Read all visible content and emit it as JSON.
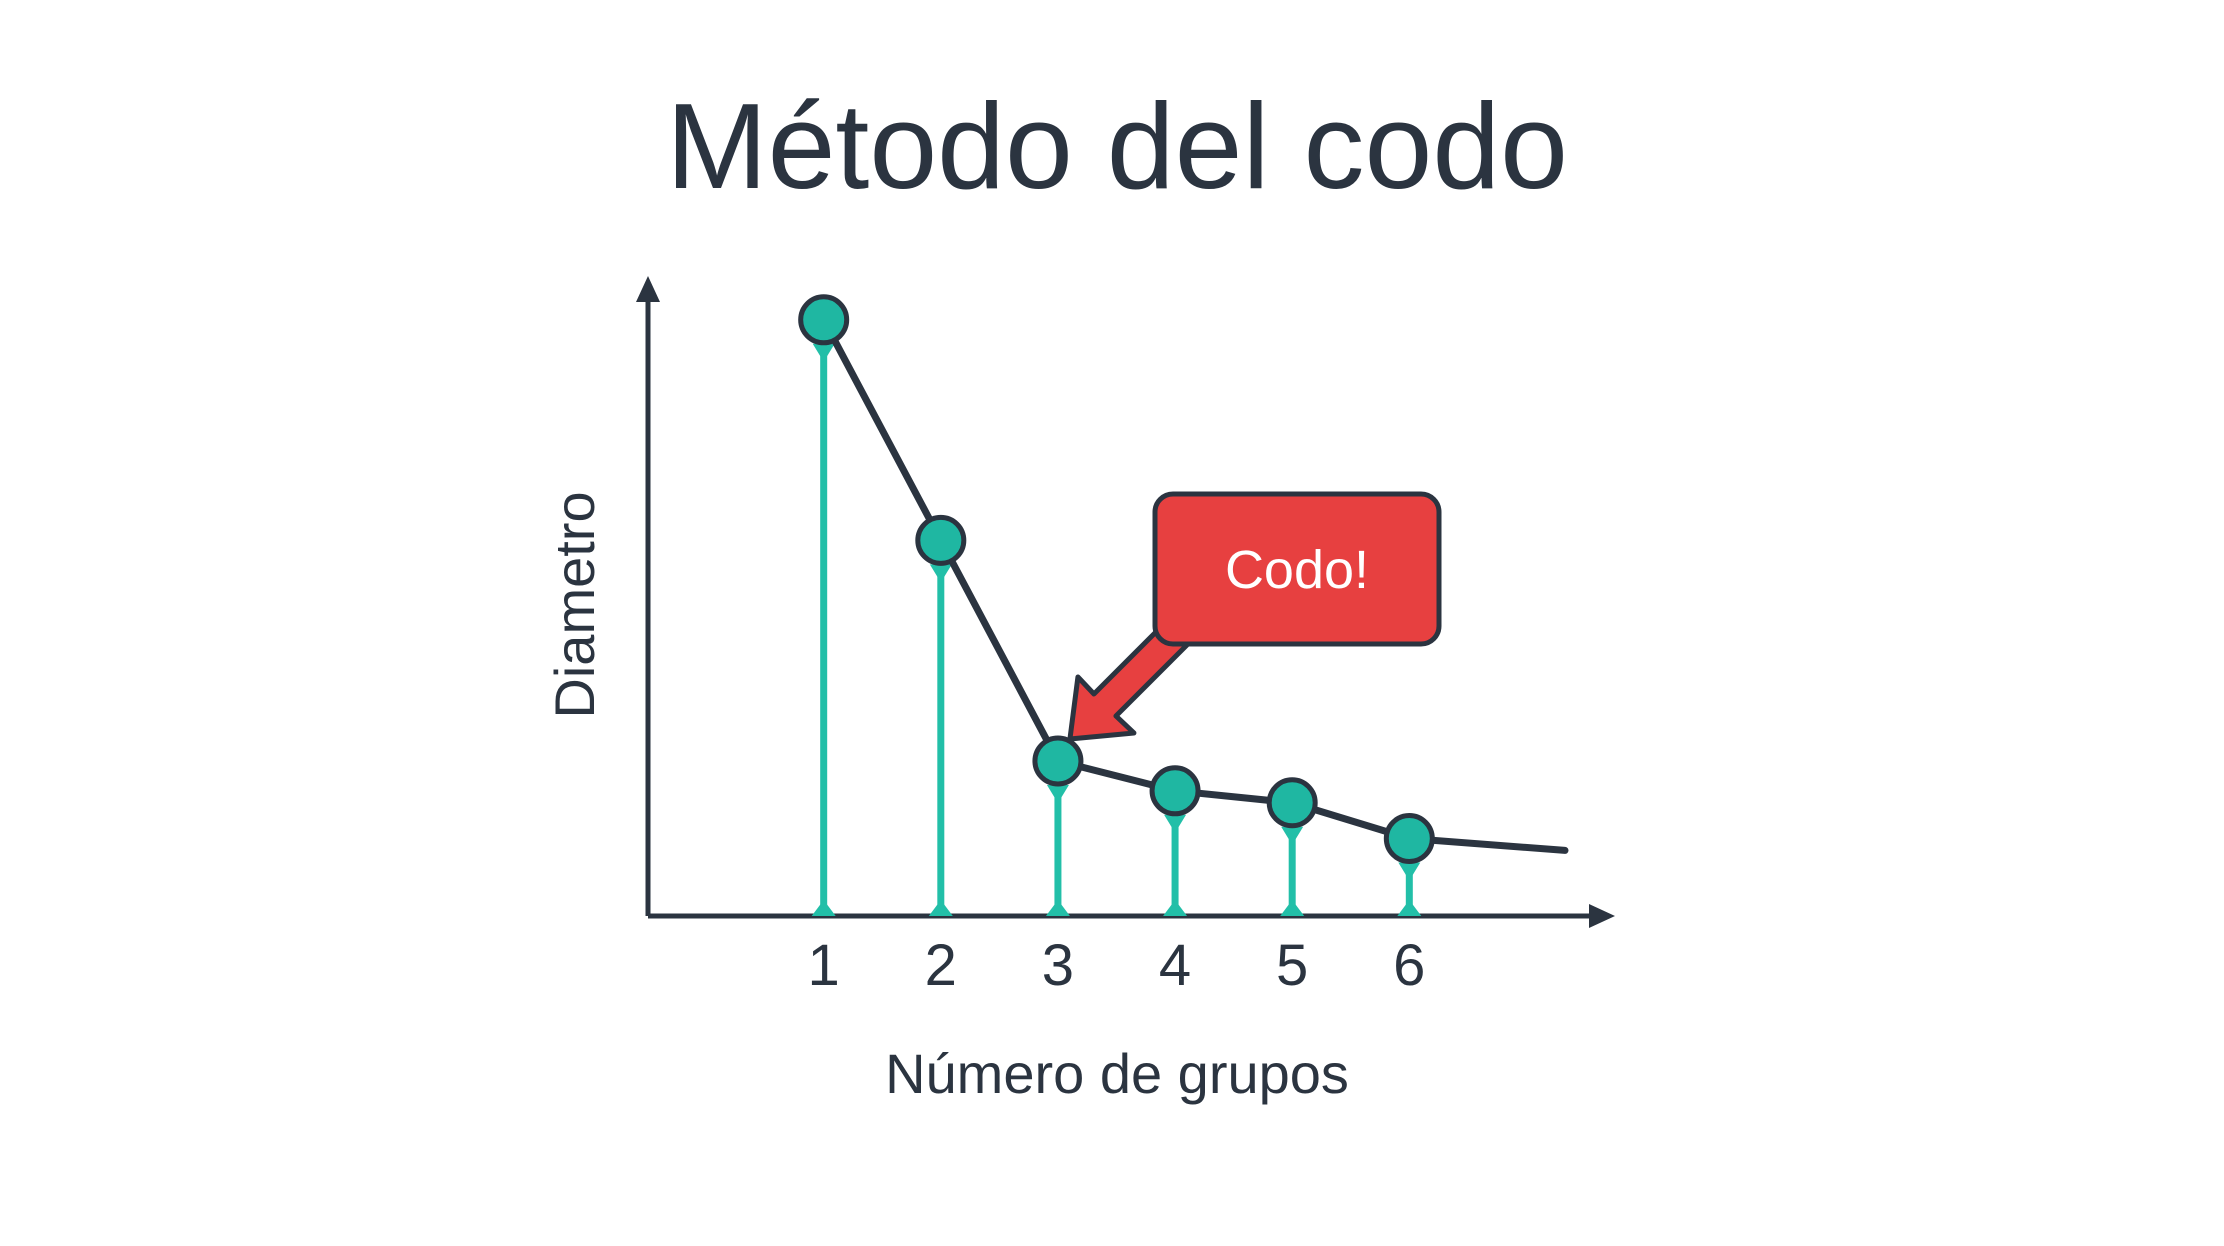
{
  "chart_data": {
    "type": "line",
    "title": "Método del codo",
    "xlabel": "Número de grupos",
    "ylabel": "Diametro",
    "x": [
      1,
      2,
      3,
      4,
      5,
      6
    ],
    "tick_labels": [
      "1",
      "2",
      "3",
      "4",
      "5",
      "6"
    ],
    "series": [
      {
        "values": [
          10.0,
          6.3,
          2.6,
          2.1,
          1.9,
          1.3
        ]
      }
    ],
    "trailing_line_value": 1.1,
    "annotation": {
      "text": "Codo!",
      "points_to_x": 3
    },
    "xlim": [
      -0.5,
      7.5
    ],
    "ylim": [
      0,
      10.5
    ],
    "grid": false,
    "colors": {
      "text": "#2b3440",
      "axis": "#2b3440",
      "stem": "#22bfa8",
      "marker_fill": "#1fb7a2",
      "line": "#2b3440",
      "callout_fill": "#e74040",
      "callout_border": "#2b3440"
    }
  }
}
